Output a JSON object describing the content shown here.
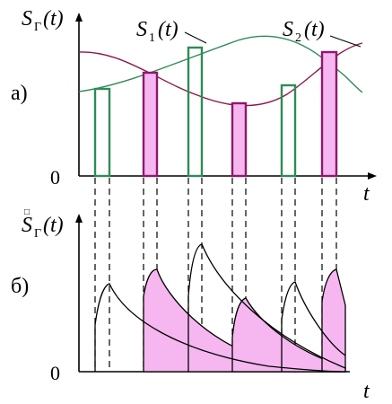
{
  "panel_a": {
    "letter": "а)",
    "y_label_main": "S",
    "y_label_sub": "Г",
    "y_label_arg": "(t)",
    "zero": "0",
    "x_label": "t",
    "s1_label_main": "S",
    "s1_label_sub": "1",
    "s1_label_arg": "(t)",
    "s2_label_main": "S",
    "s2_label_sub": "2",
    "s2_label_arg": "(t)"
  },
  "panel_b": {
    "letter": "б)",
    "y_label_dot": "□",
    "y_label_main": "S",
    "y_label_sub": "Г",
    "y_label_arg": "(t)",
    "zero": "0",
    "x_label": "t"
  },
  "colors": {
    "signal_1": "#2e8b57",
    "signal_2": "#8b1a4a",
    "pulse_fill_2": "#f6b6f0"
  }
}
